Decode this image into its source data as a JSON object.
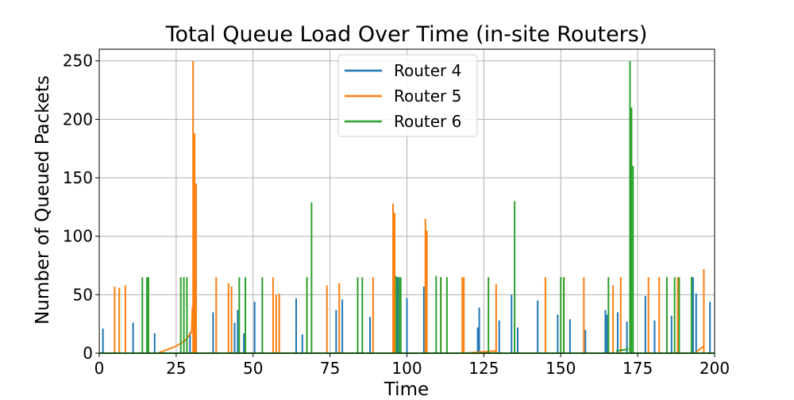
{
  "chart_data": {
    "type": "line",
    "title": "Total Queue Load Over Time (in-site Routers)",
    "xlabel": "Time",
    "ylabel": "Number of Queued Packets",
    "xlim": [
      0,
      200
    ],
    "ylim": [
      0,
      260
    ],
    "xticks": [
      0,
      25,
      50,
      75,
      100,
      125,
      150,
      175,
      200
    ],
    "yticks": [
      0,
      50,
      100,
      150,
      200,
      250
    ],
    "grid": true,
    "legend_position": "upper center",
    "series": [
      {
        "name": "Router 4",
        "color": "#1f77b4",
        "spikes": [
          [
            1.2,
            21
          ],
          [
            11,
            26
          ],
          [
            18,
            17
          ],
          [
            29.5,
            18
          ],
          [
            31,
            64
          ],
          [
            37,
            35
          ],
          [
            44,
            26
          ],
          [
            45,
            37
          ],
          [
            47,
            17
          ],
          [
            50.5,
            44
          ],
          [
            64,
            47
          ],
          [
            66,
            16
          ],
          [
            77,
            37
          ],
          [
            79,
            46
          ],
          [
            84,
            38
          ],
          [
            88,
            31
          ],
          [
            97,
            65
          ],
          [
            100,
            47
          ],
          [
            105.5,
            57
          ],
          [
            123,
            22
          ],
          [
            123.5,
            39
          ],
          [
            130,
            28
          ],
          [
            136,
            22
          ],
          [
            134,
            50
          ],
          [
            142.5,
            45
          ],
          [
            149,
            33
          ],
          [
            153,
            29
          ],
          [
            158,
            20
          ],
          [
            164.5,
            37
          ],
          [
            165,
            33
          ],
          [
            168.5,
            35
          ],
          [
            171.5,
            27
          ],
          [
            177.5,
            49
          ],
          [
            180.5,
            28
          ],
          [
            186,
            32
          ],
          [
            193,
            65
          ],
          [
            194,
            51
          ],
          [
            198.5,
            44
          ]
        ]
      },
      {
        "name": "Router 5",
        "color": "#ff7f0e",
        "spikes": [
          [
            5,
            57
          ],
          [
            6.5,
            56
          ],
          [
            8.5,
            58
          ],
          [
            19,
            0
          ],
          [
            30.5,
            250
          ],
          [
            31,
            188
          ],
          [
            31.5,
            145
          ],
          [
            38,
            65
          ],
          [
            42,
            60
          ],
          [
            43,
            57
          ],
          [
            56.5,
            65
          ],
          [
            57.5,
            50
          ],
          [
            58.5,
            51
          ],
          [
            74,
            58
          ],
          [
            78,
            60
          ],
          [
            89,
            65
          ],
          [
            95.5,
            128
          ],
          [
            96,
            120
          ],
          [
            106,
            115
          ],
          [
            106.5,
            105
          ],
          [
            111,
            65
          ],
          [
            118,
            65
          ],
          [
            118.5,
            65
          ],
          [
            129,
            59
          ],
          [
            145,
            65
          ],
          [
            151,
            65
          ],
          [
            157.5,
            65
          ],
          [
            167,
            58
          ],
          [
            169.5,
            65
          ],
          [
            178.5,
            65
          ],
          [
            182,
            65
          ],
          [
            188,
            65
          ],
          [
            196.5,
            72
          ]
        ],
        "ramps": [
          [
            [
              19,
              0
            ],
            [
              25,
              6
            ],
            [
              28,
              11
            ],
            [
              30,
              18
            ],
            [
              30.3,
              40
            ]
          ],
          [
            [
              119,
              0
            ],
            [
              129,
              2
            ]
          ],
          [
            [
              194,
              1
            ],
            [
              196.5,
              6
            ]
          ]
        ]
      },
      {
        "name": "Router 6",
        "color": "#2ca02c",
        "spikes": [
          [
            14,
            65
          ],
          [
            15.5,
            65
          ],
          [
            16,
            65
          ],
          [
            26.5,
            65
          ],
          [
            27.5,
            65
          ],
          [
            28.5,
            65
          ],
          [
            45.5,
            65
          ],
          [
            47.5,
            65
          ],
          [
            53,
            65
          ],
          [
            67.5,
            65
          ],
          [
            69,
            129
          ],
          [
            84,
            65
          ],
          [
            85.5,
            65
          ],
          [
            96.5,
            66
          ],
          [
            97.5,
            65
          ],
          [
            98,
            65
          ],
          [
            109.5,
            66
          ],
          [
            111,
            65
          ],
          [
            113,
            65
          ],
          [
            126.5,
            65
          ],
          [
            135,
            130
          ],
          [
            150,
            65
          ],
          [
            151,
            65
          ],
          [
            165.5,
            65
          ],
          [
            172.5,
            250
          ],
          [
            173,
            210
          ],
          [
            173.5,
            160
          ],
          [
            184.5,
            65
          ],
          [
            187,
            65
          ],
          [
            188.5,
            65
          ],
          [
            192.5,
            65
          ]
        ],
        "ramps": [
          [
            [
              168,
              2
            ],
            [
              171,
              3
            ],
            [
              172,
              4
            ]
          ]
        ]
      }
    ]
  }
}
